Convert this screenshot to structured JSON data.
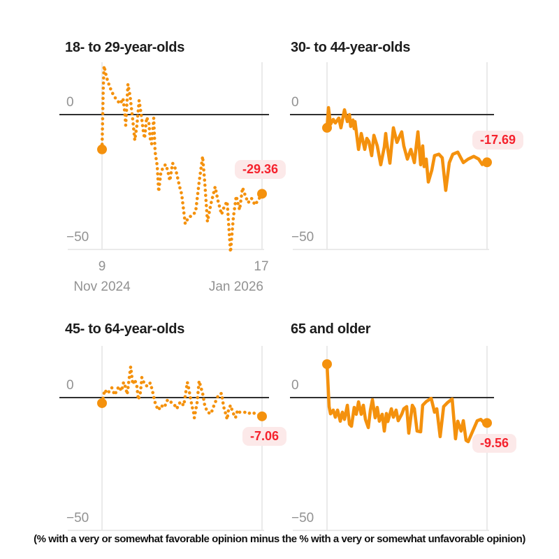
{
  "colors": {
    "line": "#F4910D",
    "zero_line": "#2F2F2F",
    "gridline": "#E4E4E4",
    "tick_label": "#929292",
    "title_text": "#1C1C1C",
    "badge_bg": "#FCE9E9",
    "badge_text": "#F5222D"
  },
  "axis": {
    "y_ticks": [
      "0",
      "−50"
    ],
    "y_range": [
      -55,
      25
    ],
    "x_ticks": [
      {
        "day": "9",
        "month": "Nov 2024"
      },
      {
        "day": "17",
        "month": "Jan 2026"
      }
    ],
    "x_axis_note": "point x values are fractions of the axis from Nov 9, 2024 to Jan 17, 2026",
    "grid": "two vertical gridlines at tick dates; dark horizontal rule at 0; light rule at -50"
  },
  "caption": "(% with a very or somewhat favorable opinion minus the % with a very or somewhat unfavorable opinion)",
  "chart_data": [
    {
      "type": "line",
      "title": "18- to 29-year-olds",
      "style": "dotted",
      "x_start": "Nov 9, 2024",
      "x_end": "Jan 17, 2026",
      "start_value": -12.9,
      "end_value": -29.36,
      "end_label": "-29.36",
      "points": [
        [
          0,
          -12.9
        ],
        [
          0.008,
          10
        ],
        [
          0.013,
          18
        ],
        [
          0.02,
          16
        ],
        [
          0.03,
          13.5
        ],
        [
          0.048,
          10.3
        ],
        [
          0.061,
          8.5
        ],
        [
          0.074,
          7
        ],
        [
          0.092,
          5.4
        ],
        [
          0.114,
          4
        ],
        [
          0.131,
          6
        ],
        [
          0.142,
          1
        ],
        [
          0.148,
          -4
        ],
        [
          0.157,
          6
        ],
        [
          0.162,
          11.3
        ],
        [
          0.175,
          7
        ],
        [
          0.192,
          -2
        ],
        [
          0.205,
          -9.5
        ],
        [
          0.218,
          -4
        ],
        [
          0.232,
          5.2
        ],
        [
          0.245,
          0
        ],
        [
          0.258,
          -6.2
        ],
        [
          0.266,
          -8.8
        ],
        [
          0.279,
          -1
        ],
        [
          0.293,
          -3
        ],
        [
          0.301,
          -8.8
        ],
        [
          0.31,
          -10.8
        ],
        [
          0.323,
          -1.3
        ],
        [
          0.332,
          -13.9
        ],
        [
          0.345,
          -19
        ],
        [
          0.354,
          -28.6
        ],
        [
          0.367,
          -21.9
        ],
        [
          0.38,
          -19.8
        ],
        [
          0.397,
          -18.5
        ],
        [
          0.41,
          -20.6
        ],
        [
          0.424,
          -24.5
        ],
        [
          0.441,
          -18
        ],
        [
          0.454,
          -19.3
        ],
        [
          0.467,
          -21.9
        ],
        [
          0.485,
          -26.8
        ],
        [
          0.498,
          -29.5
        ],
        [
          0.52,
          -40.5
        ],
        [
          0.541,
          -38
        ],
        [
          0.563,
          -37.5
        ],
        [
          0.585,
          -36
        ],
        [
          0.607,
          -25
        ],
        [
          0.629,
          -15.5
        ],
        [
          0.642,
          -25
        ],
        [
          0.659,
          -39.7
        ],
        [
          0.681,
          -33
        ],
        [
          0.707,
          -26.8
        ],
        [
          0.725,
          -32
        ],
        [
          0.747,
          -37
        ],
        [
          0.764,
          -34
        ],
        [
          0.782,
          -32.2
        ],
        [
          0.803,
          -51
        ],
        [
          0.821,
          -38
        ],
        [
          0.839,
          -30.2
        ],
        [
          0.86,
          -35.3
        ],
        [
          0.878,
          -27.1
        ],
        [
          0.895,
          -30
        ],
        [
          0.913,
          -32.7
        ],
        [
          0.934,
          -31
        ],
        [
          0.956,
          -33.5
        ],
        [
          0.978,
          -31.5
        ],
        [
          1,
          -29.36
        ]
      ]
    },
    {
      "type": "line",
      "title": "30- to 44-year-olds",
      "style": "solid",
      "x_start": "Nov 9, 2024",
      "x_end": "Jan 17, 2026",
      "start_value": -4.9,
      "end_value": -17.69,
      "end_label": "-17.69",
      "points": [
        [
          0,
          -4.9
        ],
        [
          0.009,
          2.6
        ],
        [
          0.022,
          -3.6
        ],
        [
          0.039,
          -1.8
        ],
        [
          0.052,
          -3.1
        ],
        [
          0.074,
          -1.3
        ],
        [
          0.087,
          -4.9
        ],
        [
          0.109,
          1.8
        ],
        [
          0.127,
          -2.6
        ],
        [
          0.14,
          0
        ],
        [
          0.148,
          -4.4
        ],
        [
          0.162,
          -2
        ],
        [
          0.17,
          -5.2
        ],
        [
          0.175,
          -2.6
        ],
        [
          0.197,
          -12.9
        ],
        [
          0.214,
          -7
        ],
        [
          0.236,
          -12.9
        ],
        [
          0.249,
          -8.8
        ],
        [
          0.262,
          -10
        ],
        [
          0.279,
          -15.2
        ],
        [
          0.293,
          -7.7
        ],
        [
          0.314,
          -11.6
        ],
        [
          0.336,
          -18.6
        ],
        [
          0.358,
          -12
        ],
        [
          0.367,
          -7
        ],
        [
          0.371,
          -9.5
        ],
        [
          0.393,
          -18
        ],
        [
          0.415,
          -4.9
        ],
        [
          0.437,
          -10.3
        ],
        [
          0.454,
          -8
        ],
        [
          0.467,
          -6.4
        ],
        [
          0.48,
          -11.6
        ],
        [
          0.502,
          -16.5
        ],
        [
          0.524,
          -12.9
        ],
        [
          0.546,
          -17.8
        ],
        [
          0.568,
          -6.4
        ],
        [
          0.585,
          -18.6
        ],
        [
          0.598,
          -11.6
        ],
        [
          0.607,
          -19.3
        ],
        [
          0.62,
          -16.5
        ],
        [
          0.633,
          -25
        ],
        [
          0.655,
          -20.6
        ],
        [
          0.672,
          -15.2
        ],
        [
          0.699,
          -14.7
        ],
        [
          0.72,
          -16
        ],
        [
          0.742,
          -28.1
        ],
        [
          0.764,
          -17.8
        ],
        [
          0.786,
          -14.7
        ],
        [
          0.817,
          -13.9
        ],
        [
          0.852,
          -17.8
        ],
        [
          0.882,
          -16.5
        ],
        [
          0.917,
          -15.5
        ],
        [
          0.948,
          -16.5
        ],
        [
          0.97,
          -18.5
        ],
        [
          1,
          -17.69
        ]
      ]
    },
    {
      "type": "line",
      "title": "45- to 64-year-olds",
      "style": "dotted",
      "x_start": "Nov 9, 2024",
      "x_end": "Jan 17, 2026",
      "start_value": -2.1,
      "end_value": -7.06,
      "end_label": "-7.06",
      "points": [
        [
          0,
          -2.1
        ],
        [
          0.017,
          2.9
        ],
        [
          0.035,
          1.5
        ],
        [
          0.061,
          3.7
        ],
        [
          0.079,
          1
        ],
        [
          0.105,
          4.2
        ],
        [
          0.122,
          2.5
        ],
        [
          0.135,
          5.8
        ],
        [
          0.148,
          3.7
        ],
        [
          0.157,
          1.2
        ],
        [
          0.179,
          11.6
        ],
        [
          0.192,
          5
        ],
        [
          0.205,
          6.8
        ],
        [
          0.218,
          4.2
        ],
        [
          0.227,
          -0.8
        ],
        [
          0.24,
          2
        ],
        [
          0.249,
          7.6
        ],
        [
          0.266,
          5
        ],
        [
          0.284,
          4.2
        ],
        [
          0.301,
          5.5
        ],
        [
          0.314,
          2.9
        ],
        [
          0.323,
          0.3
        ],
        [
          0.336,
          -2.9
        ],
        [
          0.354,
          -4.7
        ],
        [
          0.367,
          -2.9
        ],
        [
          0.389,
          -3.7
        ],
        [
          0.41,
          -0.8
        ],
        [
          0.428,
          -1.6
        ],
        [
          0.441,
          -2.1
        ],
        [
          0.454,
          -2.9
        ],
        [
          0.467,
          -4.2
        ],
        [
          0.489,
          -1.6
        ],
        [
          0.511,
          -3
        ],
        [
          0.533,
          5.8
        ],
        [
          0.541,
          3.7
        ],
        [
          0.563,
          -3.4
        ],
        [
          0.572,
          -5.5
        ],
        [
          0.577,
          -7.6
        ],
        [
          0.594,
          -2
        ],
        [
          0.607,
          6.3
        ],
        [
          0.616,
          4.2
        ],
        [
          0.629,
          1.6
        ],
        [
          0.642,
          -2.9
        ],
        [
          0.659,
          -5.5
        ],
        [
          0.681,
          -6.1
        ],
        [
          0.703,
          -2.4
        ],
        [
          0.729,
          1.1
        ],
        [
          0.747,
          1.6
        ],
        [
          0.76,
          -3.4
        ],
        [
          0.773,
          -6.1
        ],
        [
          0.782,
          -8.2
        ],
        [
          0.79,
          -4.7
        ],
        [
          0.803,
          -2.9
        ],
        [
          0.817,
          -5.5
        ],
        [
          0.834,
          -7.6
        ],
        [
          0.847,
          -4.7
        ],
        [
          0.86,
          -5.5
        ],
        [
          0.891,
          -5.5
        ],
        [
          0.913,
          -6.1
        ],
        [
          0.934,
          -5.5
        ],
        [
          0.956,
          -6
        ],
        [
          0.978,
          -6.5
        ],
        [
          1,
          -7.06
        ]
      ]
    },
    {
      "type": "line",
      "title": "65 and older",
      "style": "solid",
      "x_start": "Nov 9, 2024",
      "x_end": "Jan 17, 2026",
      "start_value": 12.6,
      "end_value": -9.56,
      "end_label": "-9.56",
      "points": [
        [
          0,
          12.6
        ],
        [
          0.013,
          -3.4
        ],
        [
          0.022,
          -6.1
        ],
        [
          0.039,
          -4.7
        ],
        [
          0.052,
          -7.4
        ],
        [
          0.066,
          -4.7
        ],
        [
          0.083,
          -8.9
        ],
        [
          0.096,
          -5.5
        ],
        [
          0.109,
          -8.2
        ],
        [
          0.127,
          -2.9
        ],
        [
          0.14,
          -10
        ],
        [
          0.153,
          -10.8
        ],
        [
          0.17,
          -3.7
        ],
        [
          0.183,
          -6.3
        ],
        [
          0.197,
          -1.6
        ],
        [
          0.214,
          -6.3
        ],
        [
          0.227,
          -2.9
        ],
        [
          0.24,
          -8.2
        ],
        [
          0.258,
          -11.3
        ],
        [
          0.271,
          -4.7
        ],
        [
          0.284,
          -0.8
        ],
        [
          0.301,
          -7.6
        ],
        [
          0.314,
          -3.7
        ],
        [
          0.327,
          -8.9
        ],
        [
          0.345,
          -6.3
        ],
        [
          0.358,
          -12.6
        ],
        [
          0.371,
          -6
        ],
        [
          0.38,
          -9
        ],
        [
          0.402,
          -4.2
        ],
        [
          0.415,
          -7.4
        ],
        [
          0.432,
          -4.7
        ],
        [
          0.445,
          -8.7
        ],
        [
          0.467,
          -6.3
        ],
        [
          0.48,
          -4.2
        ],
        [
          0.498,
          -3.4
        ],
        [
          0.511,
          -13.4
        ],
        [
          0.533,
          -2.9
        ],
        [
          0.546,
          -4.2
        ],
        [
          0.563,
          -12.6
        ],
        [
          0.585,
          -12.9
        ],
        [
          0.598,
          -2.9
        ],
        [
          0.62,
          -1.5
        ],
        [
          0.651,
          -0.3
        ],
        [
          0.672,
          -5.5
        ],
        [
          0.686,
          -4.2
        ],
        [
          0.707,
          -14.7
        ],
        [
          0.729,
          -3.4
        ],
        [
          0.751,
          -2
        ],
        [
          0.782,
          -0.5
        ],
        [
          0.803,
          -15.5
        ],
        [
          0.817,
          -8.9
        ],
        [
          0.838,
          -12.6
        ],
        [
          0.852,
          -8.7
        ],
        [
          0.869,
          -16.1
        ],
        [
          0.882,
          -16.6
        ],
        [
          0.908,
          -13
        ],
        [
          0.939,
          -8.7
        ],
        [
          0.961,
          -8.2
        ],
        [
          0.985,
          -9.8
        ],
        [
          1,
          -9.56
        ]
      ]
    }
  ]
}
